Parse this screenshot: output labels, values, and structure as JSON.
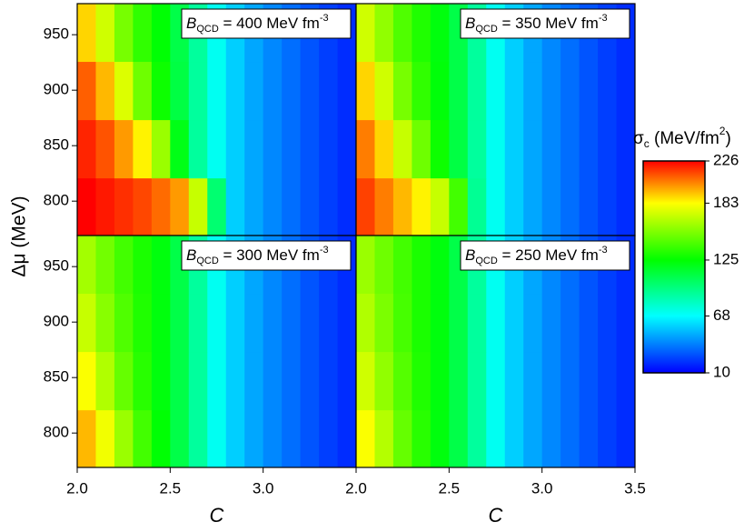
{
  "chart_data": [
    {
      "type": "heatmap",
      "annotation": {
        "symbol": "B",
        "subscript": "QCD",
        "text": " = 400 MeV fm",
        "superscript": "-3"
      },
      "x": [
        2.05,
        2.15,
        2.25,
        2.35,
        2.45,
        2.55,
        2.65,
        2.75,
        2.85,
        2.95,
        3.05,
        3.15,
        3.25,
        3.35,
        3.45
      ],
      "y": [
        795,
        847,
        900,
        952
      ],
      "z": [
        [
          226,
          222,
          218,
          214,
          208,
          200,
          170,
          100,
          57,
          48,
          41,
          35,
          29,
          24,
          20
        ],
        [
          220,
          212,
          200,
          185,
          160,
          120,
          90,
          71,
          57,
          48,
          41,
          35,
          29,
          24,
          20
        ],
        [
          210,
          195,
          175,
          150,
          128,
          110,
          90,
          71,
          57,
          48,
          41,
          35,
          29,
          24,
          20
        ],
        [
          190,
          172,
          152,
          136,
          124,
          109,
          90,
          71,
          57,
          48,
          41,
          35,
          29,
          24,
          20
        ]
      ],
      "xlim": [
        2.0,
        3.5
      ],
      "ylim": [
        769,
        978
      ],
      "yticks": [
        800,
        850,
        900,
        950
      ]
    },
    {
      "type": "heatmap",
      "annotation": {
        "symbol": "B",
        "subscript": "QCD",
        "text": " = 350 MeV fm",
        "superscript": "-3"
      },
      "x": [
        2.05,
        2.15,
        2.25,
        2.35,
        2.45,
        2.55,
        2.65,
        2.75,
        2.85,
        2.95,
        3.05,
        3.15,
        3.25,
        3.35,
        3.45
      ],
      "y": [
        795,
        847,
        900,
        952
      ],
      "z": [
        [
          215,
          205,
          195,
          185,
          170,
          140,
          92,
          71,
          57,
          48,
          41,
          35,
          29,
          24,
          20
        ],
        [
          205,
          190,
          170,
          150,
          128,
          110,
          90,
          71,
          57,
          48,
          41,
          35,
          29,
          24,
          20
        ],
        [
          190,
          172,
          152,
          136,
          123,
          109,
          90,
          71,
          57,
          48,
          41,
          35,
          29,
          24,
          20
        ],
        [
          172,
          158,
          143,
          132,
          122,
          109,
          90,
          71,
          57,
          48,
          41,
          35,
          29,
          24,
          20
        ]
      ],
      "xlim": [
        2.0,
        3.5
      ],
      "ylim": [
        769,
        978
      ]
    },
    {
      "type": "heatmap",
      "annotation": {
        "symbol": "B",
        "subscript": "QCD",
        "text": " = 300 MeV fm",
        "superscript": "-3"
      },
      "x": [
        2.05,
        2.15,
        2.25,
        2.35,
        2.45,
        2.55,
        2.65,
        2.75,
        2.85,
        2.95,
        3.05,
        3.15,
        3.25,
        3.35,
        3.45
      ],
      "y": [
        795,
        847,
        900,
        952
      ],
      "z": [
        [
          195,
          180,
          160,
          140,
          124,
          109,
          90,
          71,
          57,
          48,
          41,
          35,
          29,
          24,
          20
        ],
        [
          182,
          165,
          148,
          134,
          122,
          109,
          90,
          71,
          57,
          48,
          41,
          35,
          29,
          24,
          20
        ],
        [
          170,
          156,
          143,
          132,
          122,
          109,
          90,
          71,
          57,
          48,
          41,
          35,
          29,
          24,
          20
        ],
        [
          162,
          151,
          140,
          131,
          122,
          109,
          90,
          71,
          57,
          48,
          41,
          35,
          29,
          24,
          20
        ]
      ],
      "xlim": [
        2.0,
        3.5
      ],
      "ylim": [
        769,
        978
      ],
      "yticks": [
        800,
        850,
        900,
        950
      ],
      "xticks": [
        {
          "value": 2.0,
          "label": "2.0"
        },
        {
          "value": 2.5,
          "label": "2.5"
        },
        {
          "value": 3.0,
          "label": "3.0"
        }
      ],
      "xlabel": "C"
    },
    {
      "type": "heatmap",
      "annotation": {
        "symbol": "B",
        "subscript": "QCD",
        "text": " = 250 MeV fm",
        "superscript": "-3"
      },
      "x": [
        2.05,
        2.15,
        2.25,
        2.35,
        2.45,
        2.55,
        2.65,
        2.75,
        2.85,
        2.95,
        3.05,
        3.15,
        3.25,
        3.35,
        3.45
      ],
      "y": [
        795,
        847,
        900,
        952
      ],
      "z": [
        [
          182,
          166,
          148,
          134,
          122,
          109,
          90,
          71,
          57,
          48,
          41,
          35,
          29,
          24,
          20
        ],
        [
          172,
          158,
          144,
          132,
          122,
          109,
          90,
          71,
          57,
          48,
          41,
          35,
          29,
          24,
          20
        ],
        [
          165,
          153,
          141,
          131,
          122,
          109,
          90,
          71,
          57,
          48,
          41,
          35,
          29,
          24,
          20
        ],
        [
          160,
          150,
          140,
          131,
          122,
          109,
          90,
          71,
          57,
          48,
          41,
          35,
          29,
          24,
          20
        ]
      ],
      "xlim": [
        2.0,
        3.5
      ],
      "ylim": [
        769,
        978
      ],
      "xticks": [
        {
          "value": 2.0,
          "label": "2.0"
        },
        {
          "value": 2.5,
          "label": "2.5"
        },
        {
          "value": 3.0,
          "label": "3.0"
        },
        {
          "value": 3.5,
          "label": "3.5"
        }
      ],
      "xlabel": "C"
    }
  ],
  "shared": {
    "ylabel": "Δμ (MeV)",
    "colorbar": {
      "label": {
        "symbol": "σ",
        "subscript": "c",
        "text": " (MeV/fm",
        "superscript": "2",
        "close": ")"
      },
      "clim": [
        10,
        226
      ],
      "ticks": [
        10,
        68,
        125,
        183,
        226
      ],
      "colors": [
        "#0000ff",
        "#00ffff",
        "#00ff00",
        "#ffff00",
        "#ff0000"
      ]
    }
  }
}
